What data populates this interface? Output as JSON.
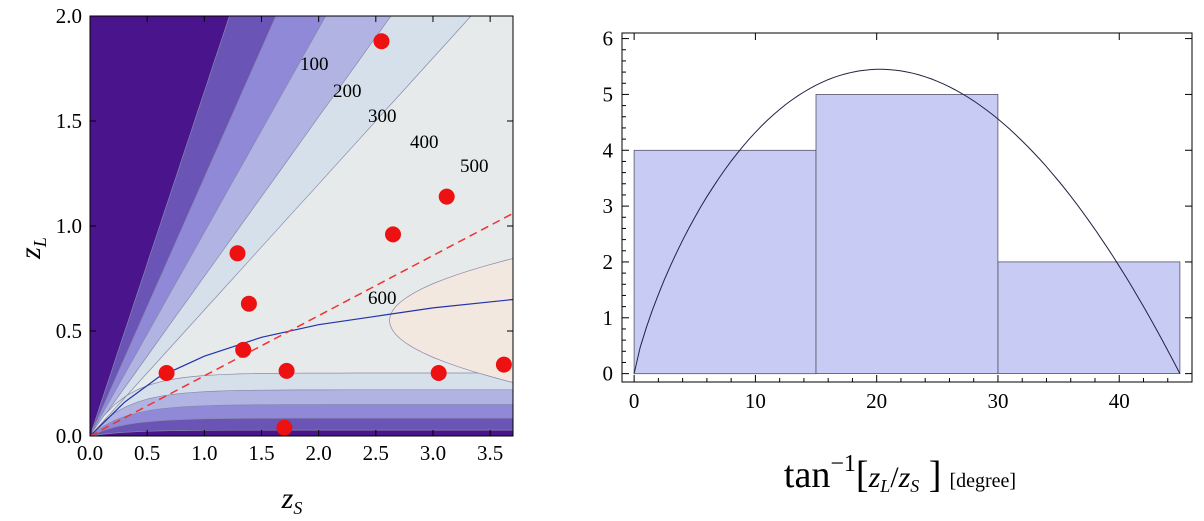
{
  "chart_data": [
    {
      "type": "scatter",
      "subtype": "filled-contour",
      "xlabel": "z",
      "xlabel_sub": "S",
      "ylabel": "z",
      "ylabel_sub": "L",
      "xlim": [
        0,
        3.7
      ],
      "ylim": [
        0,
        2.0
      ],
      "xticks": [
        "0.0",
        "0.5",
        "1.0",
        "1.5",
        "2.0",
        "2.5",
        "3.0",
        "3.5"
      ],
      "yticks": [
        "0.0",
        "0.5",
        "1.0",
        "1.5",
        "2.0"
      ],
      "contour_levels": [
        "100",
        "200",
        "300",
        "400",
        "500",
        "600"
      ],
      "contour_colors": [
        "#4a148c",
        "#6a54b5",
        "#8f89d8",
        "#b1b4e2",
        "#d6e0ea",
        "#e6eaea",
        "#f2e8e0"
      ],
      "points": [
        {
          "x": 2.55,
          "y": 1.88
        },
        {
          "x": 3.12,
          "y": 1.14
        },
        {
          "x": 2.65,
          "y": 0.96
        },
        {
          "x": 1.29,
          "y": 0.87
        },
        {
          "x": 1.39,
          "y": 0.63
        },
        {
          "x": 1.34,
          "y": 0.41
        },
        {
          "x": 0.67,
          "y": 0.3
        },
        {
          "x": 1.72,
          "y": 0.31
        },
        {
          "x": 3.05,
          "y": 0.3
        },
        {
          "x": 3.62,
          "y": 0.34
        },
        {
          "x": 1.7,
          "y": 0.04
        }
      ],
      "point_color": "#ee1111",
      "dashed_line": {
        "color": "#ee3333",
        "x": [
          0,
          3.7
        ],
        "y": [
          0,
          1.06
        ]
      },
      "blue_curve": {
        "color": "#2233aa",
        "x": [
          0,
          0.3,
          0.6,
          1.0,
          1.5,
          2.0,
          2.5,
          3.0,
          3.7
        ],
        "y": [
          0,
          0.16,
          0.28,
          0.38,
          0.47,
          0.53,
          0.57,
          0.61,
          0.65
        ]
      }
    },
    {
      "type": "bar",
      "subtype": "histogram",
      "xlabel": "tan",
      "xlabel_exp": "−1",
      "xlabel_arg_num": "z",
      "xlabel_arg_num_sub": "L",
      "xlabel_arg_den": "z",
      "xlabel_arg_den_sub": "S",
      "xlabel_unit": "[degree]",
      "bins": [
        [
          0,
          15
        ],
        [
          15,
          30
        ],
        [
          30,
          45
        ]
      ],
      "values": [
        4,
        5,
        2
      ],
      "bar_color": "#c8ccf4",
      "xlim": [
        -1,
        46
      ],
      "ylim": [
        -0.15,
        6.1
      ],
      "xticks": [
        "0",
        "10",
        "20",
        "30",
        "40"
      ],
      "yticks": [
        "0",
        "1",
        "2",
        "3",
        "4",
        "5",
        "6"
      ],
      "fit_curve": {
        "type": "parabola",
        "x": [
          0,
          18.6,
          45
        ],
        "peak_y": 5.45
      }
    }
  ]
}
